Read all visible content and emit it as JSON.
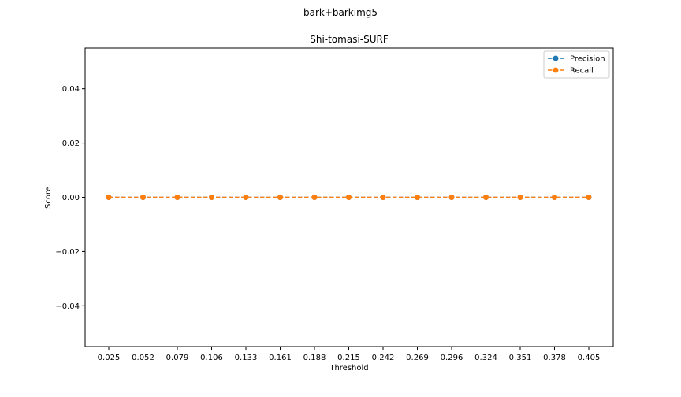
{
  "figure": {
    "suptitle": "bark+barkimg5"
  },
  "chart_data": {
    "type": "line",
    "title": "Shi-tomasi-SURF",
    "xlabel": "Threshold",
    "ylabel": "Score",
    "categories": [
      "0.025",
      "0.052",
      "0.079",
      "0.106",
      "0.133",
      "0.161",
      "0.188",
      "0.215",
      "0.242",
      "0.269",
      "0.296",
      "0.324",
      "0.351",
      "0.378",
      "0.405"
    ],
    "ylim": [
      -0.055,
      0.055
    ],
    "yticks": [
      -0.04,
      -0.02,
      0.0,
      0.02,
      0.04
    ],
    "ytick_labels": [
      "−0.04",
      "−0.02",
      "0.00",
      "0.02",
      "0.04"
    ],
    "grid": false,
    "legend_position": "top-right",
    "series": [
      {
        "name": "Precision",
        "color": "#1f77b4",
        "marker": "circle",
        "linestyle": "dashed",
        "values": [
          0,
          0,
          0,
          0,
          0,
          0,
          0,
          0,
          0,
          0,
          0,
          0,
          0,
          0,
          0
        ]
      },
      {
        "name": "Recall",
        "color": "#ff7f0e",
        "marker": "circle",
        "linestyle": "dashed",
        "values": [
          0,
          0,
          0,
          0,
          0,
          0,
          0,
          0,
          0,
          0,
          0,
          0,
          0,
          0,
          0
        ]
      }
    ]
  }
}
